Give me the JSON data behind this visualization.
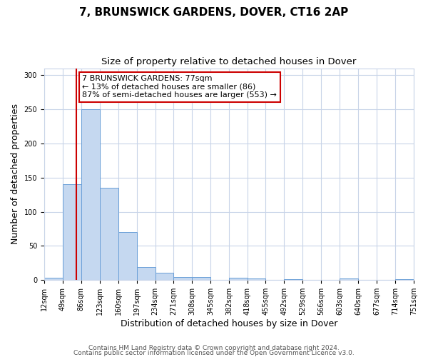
{
  "title": "7, BRUNSWICK GARDENS, DOVER, CT16 2AP",
  "subtitle": "Size of property relative to detached houses in Dover",
  "xlabel": "Distribution of detached houses by size in Dover",
  "ylabel": "Number of detached properties",
  "bin_edges": [
    12,
    49,
    86,
    123,
    160,
    197,
    234,
    271,
    308,
    345,
    382,
    418,
    455,
    492,
    529,
    566,
    603,
    640,
    677,
    714,
    751
  ],
  "bin_heights": [
    3,
    140,
    250,
    135,
    70,
    19,
    11,
    5,
    5,
    0,
    4,
    2,
    0,
    1,
    0,
    0,
    2,
    0,
    0,
    1
  ],
  "bar_color": "#c5d8f0",
  "bar_edge_color": "#6a9fd8",
  "vline_color": "#cc0000",
  "vline_x": 77,
  "annotation_text": "7 BRUNSWICK GARDENS: 77sqm\n← 13% of detached houses are smaller (86)\n87% of semi-detached houses are larger (553) →",
  "annotation_box_color": "#ffffff",
  "annotation_box_edge_color": "#cc0000",
  "ylim": [
    0,
    310
  ],
  "yticks": [
    0,
    50,
    100,
    150,
    200,
    250,
    300
  ],
  "tick_labels": [
    "12sqm",
    "49sqm",
    "86sqm",
    "123sqm",
    "160sqm",
    "197sqm",
    "234sqm",
    "271sqm",
    "308sqm",
    "345sqm",
    "382sqm",
    "418sqm",
    "455sqm",
    "492sqm",
    "529sqm",
    "566sqm",
    "603sqm",
    "640sqm",
    "677sqm",
    "714sqm",
    "751sqm"
  ],
  "footer1": "Contains HM Land Registry data © Crown copyright and database right 2024.",
  "footer2": "Contains public sector information licensed under the Open Government Licence v3.0.",
  "background_color": "#ffffff",
  "grid_color": "#c8d4e8",
  "title_fontsize": 11,
  "subtitle_fontsize": 9.5,
  "axis_label_fontsize": 9,
  "tick_fontsize": 7,
  "annotation_fontsize": 8,
  "footer_fontsize": 6.5
}
